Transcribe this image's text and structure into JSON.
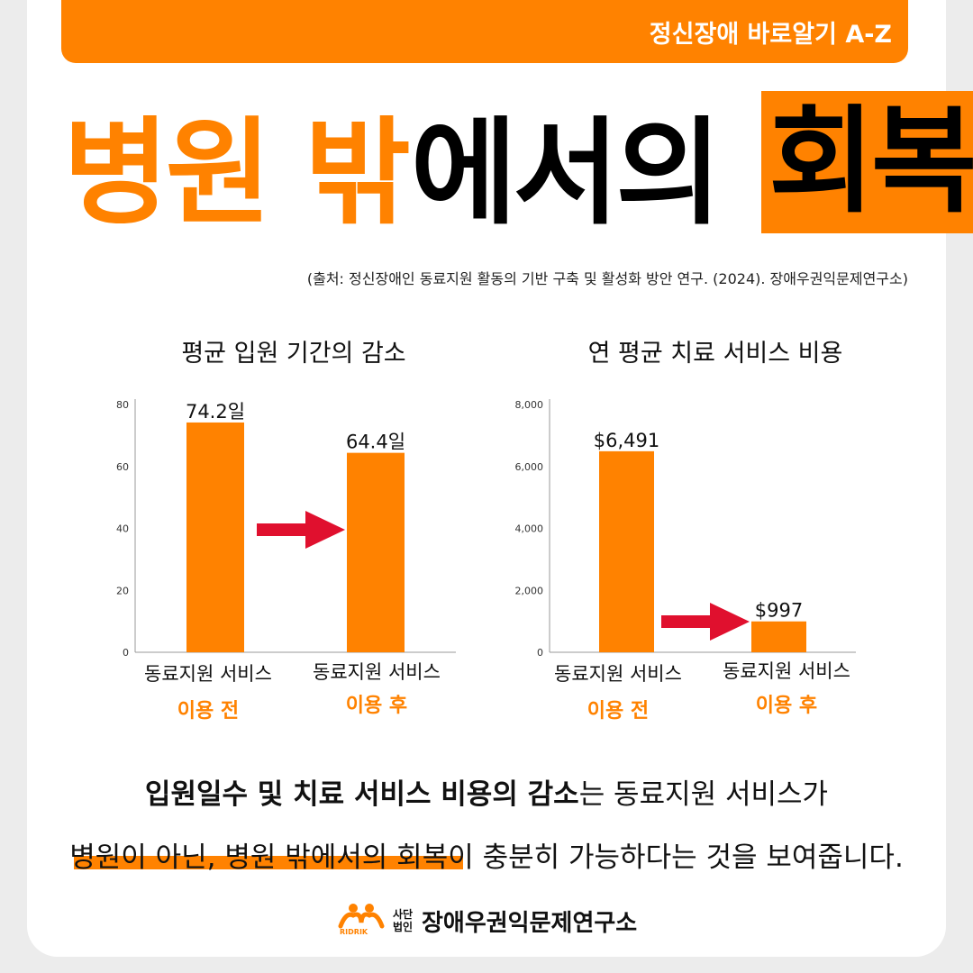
{
  "header": {
    "series_label": "정신장애 바로알기 A-Z"
  },
  "headline": {
    "part_orange": "병원 밖",
    "part_black": "에서의",
    "part_boxed": "회복"
  },
  "source": "(출처: 정신장애인 동료지원 활동의 기반 구축 및 활성화 방안 연구. (2024). 장애우권익문제연구소)",
  "colors": {
    "accent": "#ff8200",
    "arrow": "#e0102e"
  },
  "chart_data": [
    {
      "type": "bar",
      "title": "평균 입원 기간의 감소",
      "categories": [
        [
          "동료지원 서비스",
          "이용 전"
        ],
        [
          "동료지원 서비스",
          "이용 후"
        ]
      ],
      "values": [
        74.2,
        64.4
      ],
      "data_labels": [
        "74.2일",
        "64.4일"
      ],
      "yticks": [
        "0",
        "20",
        "40",
        "60",
        "80"
      ],
      "ylim": [
        0,
        80
      ],
      "grid": false,
      "annotation": "arrow"
    },
    {
      "type": "bar",
      "title": "연 평균 치료 서비스 비용",
      "categories": [
        [
          "동료지원 서비스",
          "이용 전"
        ],
        [
          "동료지원 서비스",
          "이용 후"
        ]
      ],
      "values": [
        6491,
        997
      ],
      "data_labels": [
        "$6,491",
        "$997"
      ],
      "yticks": [
        "0",
        "2,000",
        "4,000",
        "6,000",
        "8,000"
      ],
      "ylim": [
        0,
        8000
      ],
      "grid": false,
      "annotation": "arrow"
    }
  ],
  "summary": {
    "line1_bold": "입원일수 및 치료 서비스 비용의 감소",
    "line1_rest": "는 동료지원 서비스가",
    "line2_highlight": "병원이 아닌, 병원 밖에서의 회복",
    "line2_rest": "이 충분히 가능하다는 것을 보여줍니다."
  },
  "footer": {
    "logo_text": "RIDRIK",
    "corp_type": "사단 법인",
    "org_name": "장애우권익문제연구소"
  }
}
